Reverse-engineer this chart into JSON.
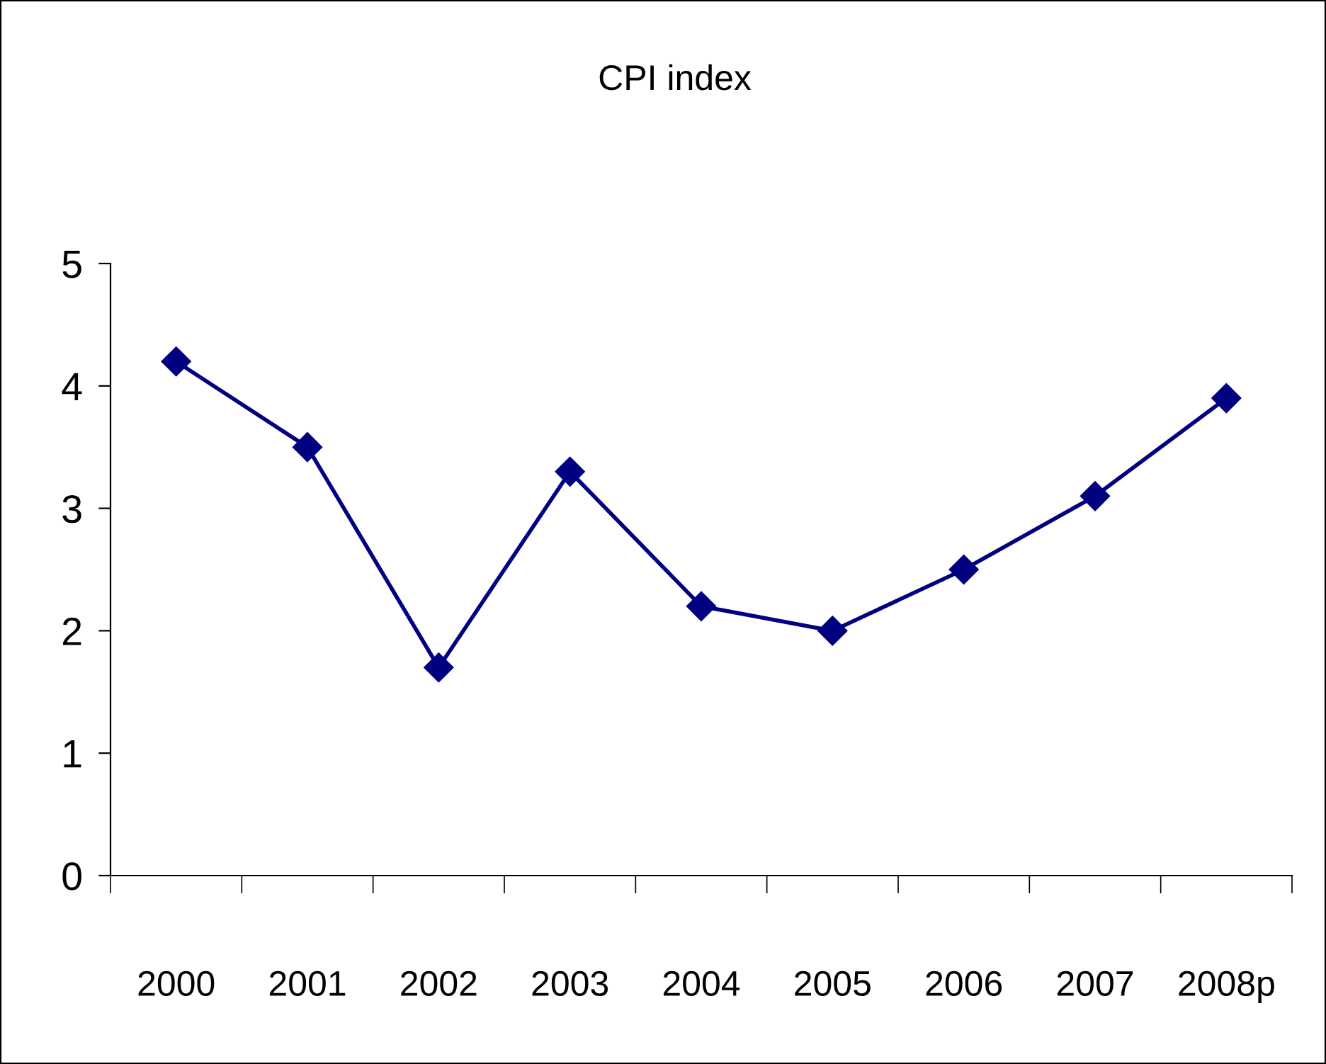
{
  "chart_data": {
    "type": "line",
    "title": "CPI index",
    "categories": [
      "2000",
      "2001",
      "2002",
      "2003",
      "2004",
      "2005",
      "2006",
      "2007",
      "2008p"
    ],
    "series": [
      {
        "color": "#000080",
        "values": [
          4.2,
          3.5,
          1.7,
          3.3,
          2.2,
          2.0,
          2.5,
          3.1,
          3.9
        ]
      }
    ],
    "ylim": [
      0,
      5
    ],
    "yticks": [
      0,
      1,
      2,
      3,
      4,
      5
    ],
    "marker": "diamond",
    "line_style": "solid",
    "grid": false
  }
}
